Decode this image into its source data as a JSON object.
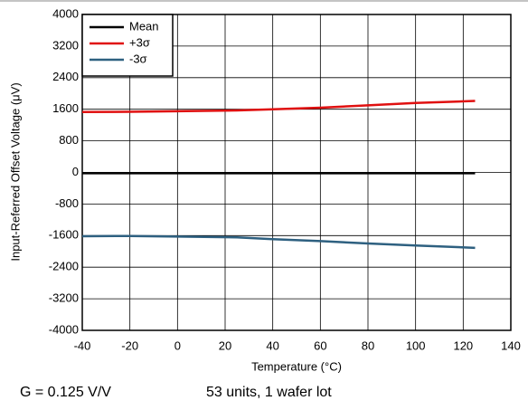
{
  "chart_data": {
    "type": "line",
    "x_label": "Temperature (°C)",
    "y_label": "Input-Referred Offset Voltage (μV)",
    "x": [
      -40,
      -20,
      0,
      25,
      40,
      60,
      80,
      100,
      125
    ],
    "series": [
      {
        "name": "Mean",
        "color": "#000000",
        "values": [
          -20,
          -20,
          -20,
          -20,
          -20,
          -20,
          -20,
          -20,
          -20
        ]
      },
      {
        "name": "+3σ",
        "color": "#e01010",
        "values": [
          1530,
          1535,
          1550,
          1570,
          1600,
          1640,
          1700,
          1760,
          1810
        ]
      },
      {
        "name": "-3σ",
        "color": "#2e6080",
        "values": [
          -1615,
          -1610,
          -1625,
          -1645,
          -1690,
          -1740,
          -1800,
          -1850,
          -1910
        ]
      }
    ],
    "xlim": [
      -40,
      140
    ],
    "xticks": [
      -40,
      -20,
      0,
      20,
      40,
      60,
      80,
      100,
      120,
      140
    ],
    "ylim": [
      -4000,
      4000
    ],
    "yticks": [
      -4000,
      -3200,
      -2400,
      -1600,
      -800,
      0,
      800,
      1600,
      2400,
      3200,
      4000
    ],
    "grid": true,
    "legend": "top-left",
    "notes": [
      "G = 0.125 V/V",
      "53 units, 1 wafer lot"
    ]
  }
}
